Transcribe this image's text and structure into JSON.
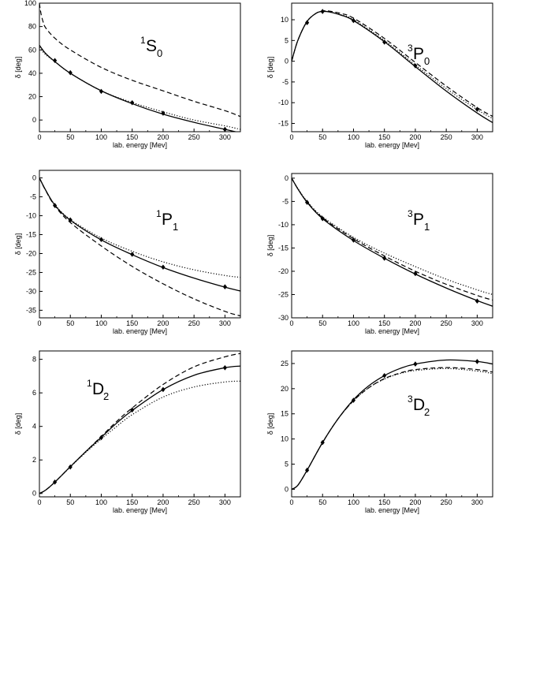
{
  "chart_data": [
    {
      "id": "1S0",
      "type": "line",
      "state": {
        "sup": "1",
        "main": "S",
        "sub": "0"
      },
      "xlabel": "lab. energy [Mev]",
      "ylabel": "δ [deg]",
      "xlim": [
        0,
        325
      ],
      "ylim": [
        -10,
        100
      ],
      "xticks": [
        0,
        50,
        100,
        150,
        200,
        250,
        300
      ],
      "yticks": [
        0,
        20,
        40,
        60,
        80,
        100
      ],
      "series": [
        {
          "style": "solid",
          "x": [
            0,
            10,
            25,
            50,
            100,
            150,
            200,
            250,
            300,
            325
          ],
          "y": [
            64,
            57,
            50,
            40,
            25,
            14,
            5,
            -2,
            -8,
            -11
          ]
        },
        {
          "style": "dotted",
          "x": [
            0,
            10,
            25,
            50,
            100,
            150,
            200,
            250,
            300,
            325
          ],
          "y": [
            62,
            56,
            50,
            40,
            25,
            15,
            7,
            0,
            -5,
            -8
          ]
        },
        {
          "style": "dashed",
          "x": [
            0,
            1,
            3,
            6,
            10,
            25,
            50,
            100,
            150,
            200,
            250,
            300,
            325
          ],
          "y": [
            100,
            96,
            90,
            84,
            79,
            70,
            60,
            45,
            34,
            25,
            16,
            8,
            3
          ]
        },
        {
          "style": "markers",
          "x": [
            25,
            50,
            100,
            150,
            200,
            300
          ],
          "y": [
            50.9,
            40.5,
            24.5,
            14.8,
            5.8,
            -8
          ]
        }
      ]
    },
    {
      "id": "3P0",
      "type": "line",
      "state": {
        "sup": "3",
        "main": "P",
        "sub": "0"
      },
      "xlabel": "lab. energy [Mev]",
      "ylabel": "δ [deg]",
      "xlim": [
        0,
        325
      ],
      "ylim": [
        -17,
        14
      ],
      "xticks": [
        0,
        50,
        100,
        150,
        200,
        250,
        300
      ],
      "yticks": [
        -15,
        -10,
        -5,
        0,
        5,
        10
      ],
      "series": [
        {
          "style": "solid",
          "x": [
            0,
            10,
            25,
            40,
            50,
            60,
            80,
            100,
            150,
            200,
            250,
            300,
            325
          ],
          "y": [
            0,
            5,
            9.6,
            11.6,
            12,
            11.9,
            11.1,
            9.8,
            4.7,
            -1.3,
            -7.2,
            -12.5,
            -14.8
          ]
        },
        {
          "style": "dotted",
          "x": [
            0,
            10,
            25,
            40,
            50,
            60,
            80,
            100,
            150,
            200,
            250,
            300,
            325
          ],
          "y": [
            0,
            5,
            9.6,
            11.6,
            12,
            11.9,
            11.2,
            10.0,
            5.0,
            -0.9,
            -6.6,
            -11.7,
            -13.8
          ]
        },
        {
          "style": "dashed",
          "x": [
            0,
            10,
            25,
            40,
            50,
            60,
            80,
            100,
            150,
            200,
            250,
            300,
            325
          ],
          "y": [
            0,
            5,
            9.6,
            11.6,
            12.1,
            12.1,
            11.5,
            10.4,
            5.5,
            -0.3,
            -6,
            -11.2,
            -13.3
          ]
        },
        {
          "style": "markers",
          "x": [
            25,
            50,
            100,
            150,
            200,
            300
          ],
          "y": [
            9.3,
            12,
            9.8,
            4.6,
            -1.1,
            -11.6
          ]
        }
      ]
    },
    {
      "id": "1P1",
      "type": "line",
      "state": {
        "sup": "1",
        "main": "P",
        "sub": "1"
      },
      "xlabel": "lab. energy [Mev]",
      "ylabel": "δ [deg]",
      "xlim": [
        0,
        325
      ],
      "ylim": [
        -37,
        2
      ],
      "xticks": [
        0,
        50,
        100,
        150,
        200,
        250,
        300
      ],
      "yticks": [
        -35,
        -30,
        -25,
        -20,
        -15,
        -10,
        -5,
        0
      ],
      "series": [
        {
          "style": "solid",
          "x": [
            0,
            10,
            25,
            50,
            100,
            150,
            200,
            250,
            300,
            325
          ],
          "y": [
            0,
            -3.2,
            -7.2,
            -11.2,
            -16.4,
            -20.3,
            -23.7,
            -26.5,
            -28.9,
            -29.9
          ]
        },
        {
          "style": "dotted",
          "x": [
            0,
            10,
            25,
            50,
            100,
            150,
            200,
            250,
            300,
            325
          ],
          "y": [
            0,
            -3.2,
            -7.1,
            -11,
            -15.9,
            -19.4,
            -22.2,
            -24.3,
            -25.8,
            -26.3
          ]
        },
        {
          "style": "dashed",
          "x": [
            0,
            10,
            25,
            50,
            100,
            150,
            200,
            250,
            300,
            325
          ],
          "y": [
            0,
            -3.3,
            -7.4,
            -11.8,
            -18,
            -23.4,
            -28,
            -32,
            -35.3,
            -36.5
          ]
        },
        {
          "style": "markers",
          "x": [
            25,
            50,
            100,
            150,
            200,
            300
          ],
          "y": [
            -7.3,
            -11.1,
            -16.3,
            -20.2,
            -23.6,
            -28.8
          ]
        }
      ]
    },
    {
      "id": "3P1",
      "type": "line",
      "state": {
        "sup": "3",
        "main": "P",
        "sub": "1"
      },
      "xlabel": "lab. energy [Mev]",
      "ylabel": "δ [deg]",
      "xlim": [
        0,
        325
      ],
      "ylim": [
        -30,
        1
      ],
      "xticks": [
        0,
        50,
        100,
        150,
        200,
        250,
        300
      ],
      "yticks": [
        -30,
        -25,
        -20,
        -15,
        -10,
        -5,
        0
      ],
      "series": [
        {
          "style": "solid",
          "x": [
            0,
            10,
            25,
            50,
            100,
            150,
            200,
            250,
            300,
            325
          ],
          "y": [
            0,
            -2.3,
            -5.2,
            -8.7,
            -13.4,
            -17.2,
            -20.6,
            -23.6,
            -26.3,
            -27.5
          ]
        },
        {
          "style": "dotted",
          "x": [
            0,
            10,
            25,
            50,
            100,
            150,
            200,
            250,
            300,
            325
          ],
          "y": [
            0,
            -2.2,
            -5,
            -8.3,
            -12.7,
            -16.1,
            -19,
            -21.7,
            -24,
            -25
          ]
        },
        {
          "style": "dashed",
          "x": [
            0,
            10,
            25,
            50,
            100,
            150,
            200,
            250,
            300,
            325
          ],
          "y": [
            0,
            -2.3,
            -5.1,
            -8.5,
            -13,
            -16.7,
            -20,
            -22.8,
            -25.2,
            -26.2
          ]
        },
        {
          "style": "markers",
          "x": [
            25,
            50,
            100,
            150,
            200,
            300
          ],
          "y": [
            -5.2,
            -8.7,
            -13.3,
            -17.2,
            -20.5,
            -26.4
          ]
        }
      ]
    },
    {
      "id": "1D2",
      "type": "line",
      "state": {
        "sup": "1",
        "main": "D",
        "sub": "2"
      },
      "xlabel": "lab. energy [Mev]",
      "ylabel": "δ [deg]",
      "xlim": [
        0,
        325
      ],
      "ylim": [
        -0.2,
        8.5
      ],
      "xticks": [
        0,
        50,
        100,
        150,
        200,
        250,
        300
      ],
      "yticks": [
        0,
        2,
        4,
        6,
        8
      ],
      "series": [
        {
          "style": "solid",
          "x": [
            0,
            10,
            25,
            50,
            75,
            100,
            125,
            150,
            200,
            250,
            300,
            325
          ],
          "y": [
            0,
            0.2,
            0.68,
            1.6,
            2.5,
            3.35,
            4.2,
            4.95,
            6.2,
            7.05,
            7.5,
            7.6
          ]
        },
        {
          "style": "dotted",
          "x": [
            0,
            10,
            25,
            50,
            75,
            100,
            125,
            150,
            200,
            250,
            300,
            325
          ],
          "y": [
            0,
            0.2,
            0.68,
            1.58,
            2.45,
            3.25,
            4.0,
            4.7,
            5.75,
            6.35,
            6.65,
            6.7
          ]
        },
        {
          "style": "dashed",
          "x": [
            0,
            10,
            25,
            50,
            75,
            100,
            125,
            150,
            200,
            250,
            300,
            325
          ],
          "y": [
            0,
            0.2,
            0.68,
            1.6,
            2.5,
            3.4,
            4.3,
            5.1,
            6.5,
            7.55,
            8.15,
            8.35
          ]
        },
        {
          "style": "markers",
          "x": [
            25,
            50,
            100,
            150,
            200,
            300
          ],
          "y": [
            0.68,
            1.58,
            3.33,
            4.98,
            6.2,
            7.5
          ]
        }
      ]
    },
    {
      "id": "3D2",
      "type": "line",
      "state": {
        "sup": "3",
        "main": "D",
        "sub": "2"
      },
      "xlabel": "lab. energy [Mev]",
      "ylabel": "δ [deg]",
      "xlim": [
        0,
        325
      ],
      "ylim": [
        -1.5,
        27.5
      ],
      "xticks": [
        0,
        50,
        100,
        150,
        200,
        250,
        300
      ],
      "yticks": [
        0,
        5,
        10,
        15,
        20,
        25
      ],
      "series": [
        {
          "style": "solid",
          "x": [
            0,
            10,
            25,
            50,
            75,
            100,
            125,
            150,
            175,
            200,
            250,
            300,
            325
          ],
          "y": [
            0,
            0.8,
            3.8,
            9.3,
            14,
            17.8,
            20.6,
            22.6,
            24,
            24.9,
            25.7,
            25.4,
            24.9
          ]
        },
        {
          "style": "dotted",
          "x": [
            0,
            10,
            25,
            50,
            75,
            100,
            125,
            150,
            175,
            200,
            250,
            300,
            325
          ],
          "y": [
            0,
            0.8,
            3.8,
            9.3,
            14,
            17.6,
            20.2,
            21.9,
            23,
            23.6,
            24,
            23.5,
            23
          ]
        },
        {
          "style": "dashed",
          "x": [
            0,
            10,
            25,
            50,
            75,
            100,
            125,
            150,
            175,
            200,
            250,
            300,
            325
          ],
          "y": [
            0,
            0.8,
            3.8,
            9.3,
            14,
            17.6,
            20.2,
            22,
            23.1,
            23.8,
            24.2,
            23.8,
            23.3
          ]
        },
        {
          "style": "markers",
          "x": [
            25,
            50,
            100,
            150,
            200,
            300
          ],
          "y": [
            3.8,
            9.3,
            17.7,
            22.6,
            24.9,
            25.4
          ]
        }
      ]
    }
  ]
}
